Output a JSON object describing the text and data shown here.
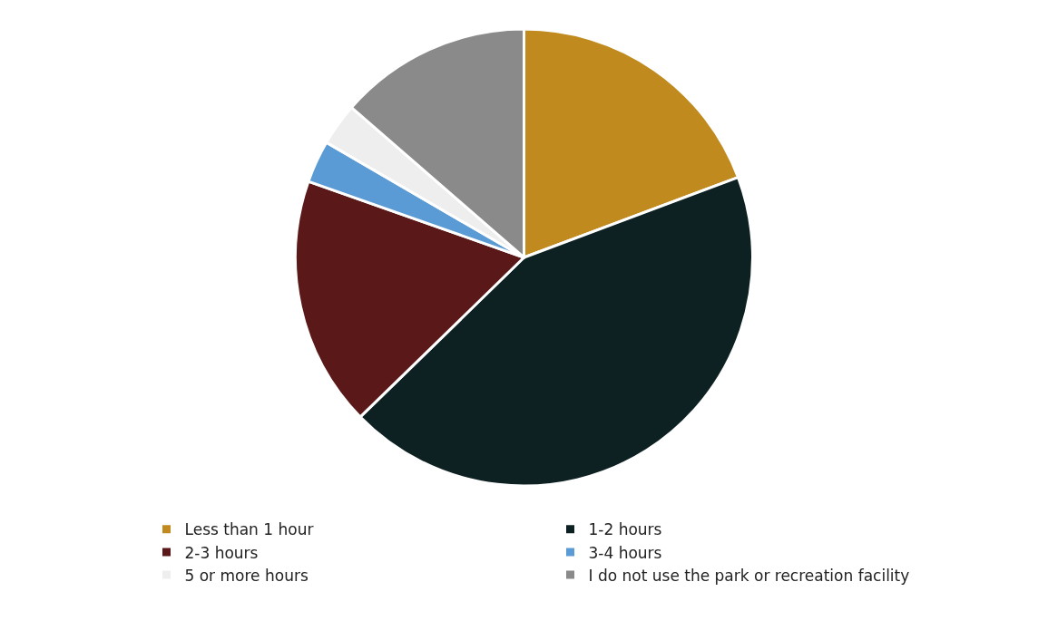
{
  "chart_data": {
    "type": "pie",
    "categories": [
      "Less than 1 hour",
      "1-2 hours",
      "2-3 hours",
      "3-4 hours",
      "5 or more hours",
      "I do not use the park or recreation facility"
    ],
    "values": [
      19.3,
      43.4,
      17.7,
      3.0,
      3.0,
      13.6
    ],
    "colors": [
      "#c08a1e",
      "#0d2022",
      "#5a1818",
      "#5b9bd5",
      "#eeeeee",
      "#8a8a8a"
    ],
    "legend": "bottom"
  }
}
